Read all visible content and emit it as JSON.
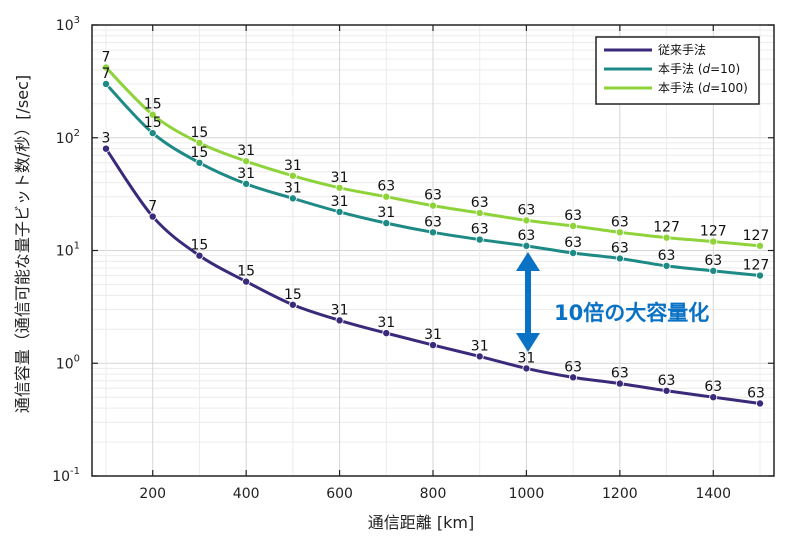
{
  "chart_data": {
    "type": "line",
    "xlabel": "通信距離 [km]",
    "ylabel": "通信容量（通信可能な量子ビット数/秒）[/sec]",
    "xlim": [
      70,
      1530
    ],
    "ylim": [
      0.1,
      1000
    ],
    "yscale": "log",
    "grid": true,
    "legend": "top-right",
    "xticks": [
      "200",
      "400",
      "600",
      "800",
      "1000",
      "1200",
      "1400"
    ],
    "yticks": [
      {
        "base": "10",
        "exp": "3",
        "value": 1000
      },
      {
        "base": "10",
        "exp": "2",
        "value": 100
      },
      {
        "base": "10",
        "exp": "1",
        "value": 10
      },
      {
        "base": "10",
        "exp": "0",
        "value": 1
      },
      {
        "base": "10",
        "exp": "-1",
        "value": 0.1
      }
    ],
    "x": [
      100,
      200,
      300,
      400,
      500,
      600,
      700,
      800,
      900,
      1000,
      1100,
      1200,
      1300,
      1400,
      1500
    ],
    "series": [
      {
        "name": "従来手法",
        "name_parts": [
          {
            "t": "従来手法",
            "i": false
          }
        ],
        "color": "#3b2a7a",
        "values": [
          80,
          20,
          9,
          5.3,
          3.3,
          2.4,
          1.85,
          1.45,
          1.15,
          0.9,
          0.75,
          0.66,
          0.57,
          0.5,
          0.44
        ],
        "labels": [
          "3",
          "7",
          "15",
          "15",
          "15",
          "31",
          "31",
          "31",
          "31",
          "31",
          "63",
          "63",
          "63",
          "63",
          "63"
        ]
      },
      {
        "name": "本手法 (d=10)",
        "name_parts": [
          {
            "t": "本手法 (",
            "i": false
          },
          {
            "t": "d",
            "i": true
          },
          {
            "t": "=10)",
            "i": false
          }
        ],
        "color": "#1e8a85",
        "values": [
          300,
          110,
          60,
          39,
          29,
          22,
          17.5,
          14.5,
          12.5,
          11,
          9.5,
          8.5,
          7.3,
          6.6,
          6
        ],
        "labels": [
          "7",
          "15",
          "15",
          "31",
          "31",
          "31",
          "31",
          "63",
          "63",
          "63",
          "63",
          "63",
          "63",
          "63",
          "127"
        ]
      },
      {
        "name": "本手法 (d=100)",
        "name_parts": [
          {
            "t": "本手法 (",
            "i": false
          },
          {
            "t": "d",
            "i": true
          },
          {
            "t": "=100)",
            "i": false
          }
        ],
        "color": "#8fd33a",
        "values": [
          420,
          160,
          90,
          62,
          46,
          36,
          30,
          25,
          21.5,
          18.5,
          16.5,
          14.5,
          13,
          12,
          11
        ],
        "labels": [
          "7",
          "15",
          "15",
          "31",
          "31",
          "31",
          "63",
          "63",
          "63",
          "63",
          "63",
          "63",
          "127",
          "127",
          "127"
        ]
      }
    ],
    "annotations": [
      {
        "text": "10倍の大容量化",
        "color": "#0a72c4"
      }
    ]
  }
}
